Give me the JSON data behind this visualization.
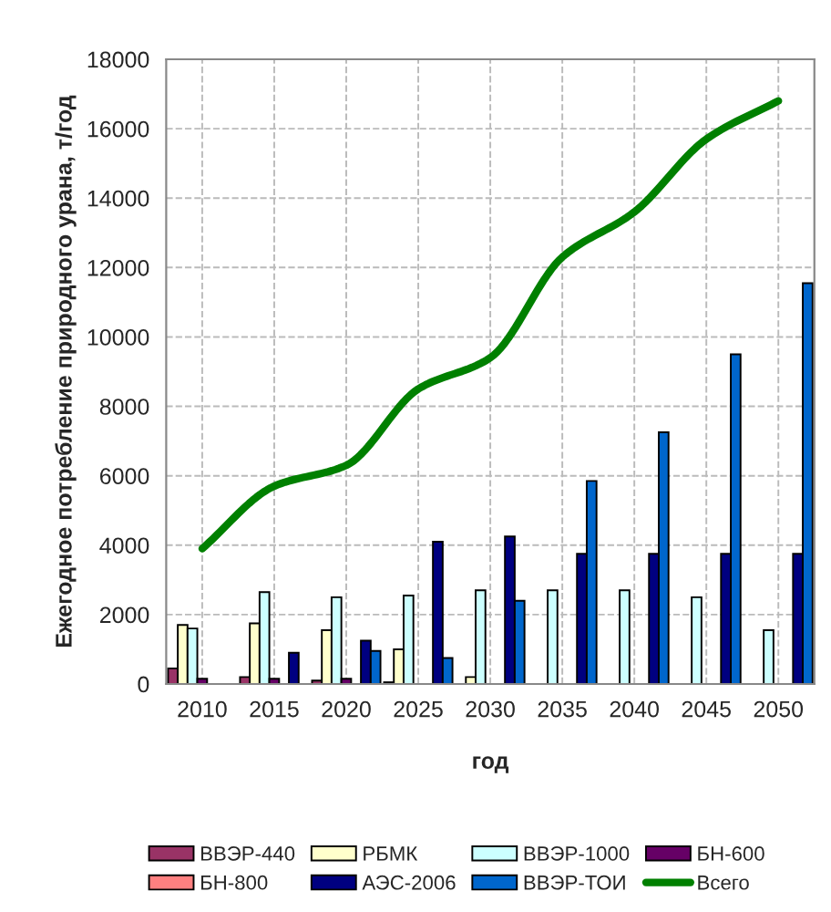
{
  "chart_data": {
    "type": "bar",
    "xlabel": "год",
    "ylabel": "Ежегодное потребление природного урана, т/год",
    "categories": [
      "2010",
      "2015",
      "2020",
      "2025",
      "2030",
      "2035",
      "2040",
      "2045",
      "2050"
    ],
    "series": [
      {
        "name": "ВВЭР-440",
        "color": "#993366",
        "values": [
          450,
          200,
          100,
          50,
          null,
          null,
          null,
          null,
          null
        ]
      },
      {
        "name": "РБМК",
        "color": "#ffffcc",
        "values": [
          1700,
          1750,
          1550,
          1000,
          200,
          null,
          null,
          null,
          null
        ]
      },
      {
        "name": "ВВЭР-1000",
        "color": "#ccffff",
        "values": [
          1600,
          2650,
          2500,
          2550,
          2700,
          2700,
          2700,
          2500,
          1550
        ]
      },
      {
        "name": "БН-600",
        "color": "#660066",
        "values": [
          150,
          150,
          150,
          null,
          null,
          null,
          null,
          null,
          null
        ]
      },
      {
        "name": "БН-800",
        "color": "#ff8080",
        "values": [
          null,
          null,
          null,
          null,
          null,
          null,
          null,
          null,
          null
        ]
      },
      {
        "name": "АЭС-2006",
        "color": "#000080",
        "values": [
          null,
          900,
          1250,
          4100,
          4250,
          3750,
          3750,
          3750,
          3750
        ]
      },
      {
        "name": "ВВЭР-ТОИ",
        "color": "#0066cc",
        "values": [
          null,
          null,
          950,
          750,
          2400,
          5850,
          7250,
          9500,
          11550
        ]
      },
      {
        "name": "Всего",
        "type": "line",
        "color": "#008000",
        "values": [
          3900,
          5700,
          6300,
          8500,
          9400,
          12300,
          13600,
          15700,
          16800
        ]
      }
    ],
    "ylim": [
      0,
      18000
    ],
    "yticks": [
      0,
      2000,
      4000,
      6000,
      8000,
      10000,
      12000,
      14000,
      16000,
      18000
    ],
    "grid": true,
    "legend": "bottom"
  }
}
